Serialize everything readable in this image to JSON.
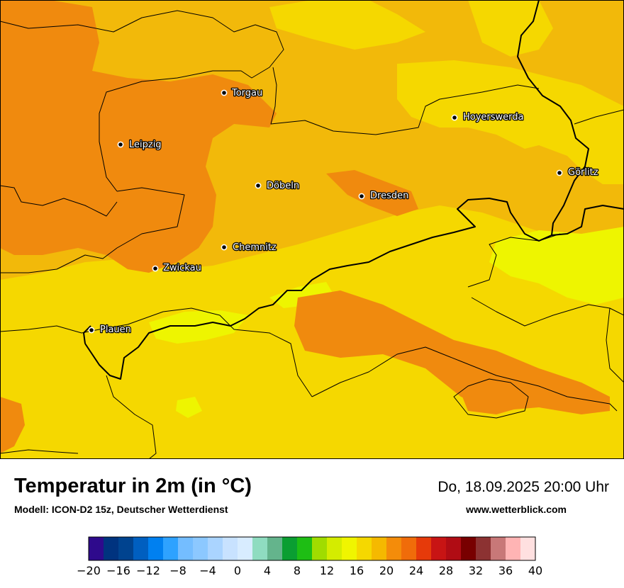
{
  "header": {
    "title": "Temperatur in 2m (in °C)",
    "model": "Modell: ICON-D2 15z, Deutscher Wetterdienst",
    "valid_time": "Do, 18.09.2025 20:00 Uhr",
    "website": "www.wetterblick.com"
  },
  "cities": [
    {
      "name": "Torgau",
      "label": "Torgau"
    },
    {
      "name": "Leipzig",
      "label": "Leipzig"
    },
    {
      "name": "Döbeln",
      "label": "Döbeln"
    },
    {
      "name": "Dresden",
      "label": "Dresden"
    },
    {
      "name": "Hoyerswerda",
      "label": "Hoyerswerda"
    },
    {
      "name": "Görlitz",
      "label": "Görlitz"
    },
    {
      "name": "Chemnitz",
      "label": "Chemnitz"
    },
    {
      "name": "Zwickau",
      "label": "Zwickau"
    },
    {
      "name": "Plauen",
      "label": "Plauen"
    }
  ],
  "legend": {
    "unit": "°C",
    "min": -20,
    "max": 40,
    "step": 2,
    "tick_labels": [
      "−20",
      "−16",
      "−12",
      "−8",
      "−4",
      "0",
      "4",
      "8",
      "12",
      "16",
      "20",
      "24",
      "28",
      "32",
      "36",
      "40"
    ],
    "colors": [
      "#2e0a8c",
      "#00337f",
      "#00438f",
      "#005fc0",
      "#0080f0",
      "#2ea2ff",
      "#74bdff",
      "#8cc8ff",
      "#aad4ff",
      "#c8e2ff",
      "#d8ecff",
      "#8fdcc0",
      "#64b48c",
      "#0a9e32",
      "#1ebe14",
      "#a0dc00",
      "#d4ec00",
      "#f0f500",
      "#f5d800",
      "#f5b900",
      "#f48c0a",
      "#f06c0a",
      "#e63a0a",
      "#c81414",
      "#b00c14",
      "#780000",
      "#8c3232",
      "#c87878",
      "#ffb4b4",
      "#ffe0e0"
    ]
  },
  "map_colors": {
    "temp_14_16": "#eef500",
    "temp_16_18": "#f5d800",
    "temp_18_20": "#f2b90a",
    "temp_20_22": "#f08a0e"
  }
}
